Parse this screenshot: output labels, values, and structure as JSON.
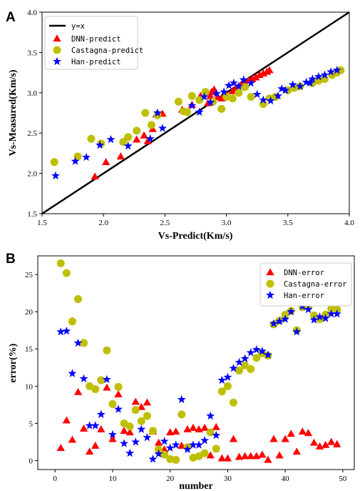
{
  "chart_data": [
    {
      "panel": "A",
      "type": "scatter",
      "xlabel": "Vs-Predict(Km/s)",
      "ylabel": "Vs-Measured(Km/s)",
      "xlim": [
        1.5,
        4.0
      ],
      "ylim": [
        1.5,
        4.0
      ],
      "xticks": [
        "1.5",
        "2.0",
        "2.5",
        "3.0",
        "3.5",
        "4.0"
      ],
      "yticks": [
        "1.5",
        "2.0",
        "2.5",
        "3.0",
        "3.5",
        "4.0"
      ],
      "legend_position": "top-left",
      "grid": false,
      "reference_line": {
        "name": "y=x",
        "from": [
          1.5,
          1.5
        ],
        "to": [
          4.0,
          4.0
        ],
        "color": "#000000"
      },
      "series": [
        {
          "name": "DNN-predict",
          "marker": "triangle",
          "color": "#ff0000",
          "points": [
            [
              1.93,
              1.96
            ],
            [
              2.02,
              2.14
            ],
            [
              2.14,
              2.21
            ],
            [
              2.27,
              2.42
            ],
            [
              2.33,
              2.47
            ],
            [
              2.36,
              2.4
            ],
            [
              2.4,
              2.55
            ],
            [
              2.43,
              2.73
            ],
            [
              2.48,
              2.74
            ],
            [
              2.64,
              2.79
            ],
            [
              2.72,
              2.85
            ],
            [
              2.79,
              2.96
            ],
            [
              2.85,
              2.87
            ],
            [
              2.88,
              3.01
            ],
            [
              2.9,
              3.04
            ],
            [
              2.93,
              2.95
            ],
            [
              2.96,
              2.93
            ],
            [
              3.0,
              2.98
            ],
            [
              3.05,
              3.02
            ],
            [
              3.08,
              3.06
            ],
            [
              3.12,
              3.1
            ],
            [
              3.15,
              3.12
            ],
            [
              3.18,
              3.15
            ],
            [
              3.21,
              3.17
            ],
            [
              3.24,
              3.19
            ],
            [
              3.27,
              3.22
            ],
            [
              3.3,
              3.24
            ],
            [
              3.33,
              3.26
            ],
            [
              3.35,
              3.28
            ],
            [
              2.87,
              2.96
            ]
          ]
        },
        {
          "name": "Castagna-predict",
          "marker": "circle",
          "color": "#bfbf00",
          "points": [
            [
              1.6,
              2.14
            ],
            [
              1.79,
              2.21
            ],
            [
              1.9,
              2.43
            ],
            [
              1.98,
              2.37
            ],
            [
              2.16,
              2.39
            ],
            [
              2.2,
              2.45
            ],
            [
              2.27,
              2.53
            ],
            [
              2.34,
              2.75
            ],
            [
              2.39,
              2.6
            ],
            [
              2.44,
              2.72
            ],
            [
              2.61,
              2.89
            ],
            [
              2.65,
              2.77
            ],
            [
              2.68,
              2.76
            ],
            [
              2.72,
              2.96
            ],
            [
              2.78,
              2.91
            ],
            [
              2.83,
              3.01
            ],
            [
              2.89,
              2.89
            ],
            [
              2.96,
              2.8
            ],
            [
              3.0,
              2.95
            ],
            [
              3.05,
              2.93
            ],
            [
              3.1,
              3.0
            ],
            [
              3.15,
              3.07
            ],
            [
              3.2,
              2.95
            ],
            [
              3.3,
              2.86
            ],
            [
              3.35,
              2.93
            ],
            [
              3.4,
              2.95
            ],
            [
              3.5,
              3.03
            ],
            [
              3.55,
              3.06
            ],
            [
              3.6,
              3.08
            ],
            [
              3.7,
              3.12
            ],
            [
              3.75,
              3.15
            ],
            [
              3.8,
              3.17
            ],
            [
              3.86,
              3.22
            ],
            [
              3.9,
              3.25
            ],
            [
              3.93,
              3.28
            ]
          ]
        },
        {
          "name": "Han-predict",
          "marker": "star",
          "color": "#0000ff",
          "points": [
            [
              1.61,
              1.97
            ],
            [
              1.77,
              2.15
            ],
            [
              1.86,
              2.2
            ],
            [
              1.97,
              2.35
            ],
            [
              2.06,
              2.42
            ],
            [
              2.2,
              2.34
            ],
            [
              2.38,
              2.43
            ],
            [
              2.44,
              2.75
            ],
            [
              2.48,
              2.56
            ],
            [
              2.72,
              2.84
            ],
            [
              2.78,
              2.76
            ],
            [
              2.82,
              2.95
            ],
            [
              2.87,
              2.88
            ],
            [
              2.92,
              2.99
            ],
            [
              2.98,
              3.01
            ],
            [
              3.02,
              3.09
            ],
            [
              3.06,
              3.12
            ],
            [
              3.1,
              3.08
            ],
            [
              3.14,
              3.16
            ],
            [
              3.2,
              3.12
            ],
            [
              3.25,
              2.98
            ],
            [
              3.3,
              2.91
            ],
            [
              3.36,
              2.9
            ],
            [
              3.42,
              2.96
            ],
            [
              3.48,
              3.03
            ],
            [
              3.54,
              3.1
            ],
            [
              3.6,
              3.08
            ],
            [
              3.65,
              3.13
            ],
            [
              3.7,
              3.17
            ],
            [
              3.75,
              3.2
            ],
            [
              3.8,
              3.22
            ],
            [
              3.85,
              3.26
            ],
            [
              3.9,
              3.28
            ],
            [
              3.68,
              3.12
            ],
            [
              3.45,
              3.05
            ]
          ]
        }
      ]
    },
    {
      "panel": "B",
      "type": "scatter",
      "xlabel": "number",
      "ylabel": "error(%)",
      "xlim": [
        -3,
        52
      ],
      "ylim": [
        -1.2,
        27.5
      ],
      "xticks": [
        "0",
        "10",
        "20",
        "30",
        "40",
        "50"
      ],
      "yticks": [
        "0",
        "5",
        "10",
        "15",
        "20",
        "25"
      ],
      "legend_position": "top-right",
      "grid": false,
      "series": [
        {
          "name": "DNN-error",
          "marker": "triangle",
          "color": "#ff0000",
          "points": [
            [
              1,
              1.7
            ],
            [
              2,
              5.4
            ],
            [
              3,
              2.8
            ],
            [
              4,
              9.2
            ],
            [
              5,
              4.3
            ],
            [
              6,
              1.2
            ],
            [
              7,
              2.0
            ],
            [
              8,
              4.2
            ],
            [
              9,
              9.8
            ],
            [
              10,
              2.9
            ],
            [
              11,
              8.9
            ],
            [
              12,
              4.0
            ],
            [
              13,
              3.8
            ],
            [
              14,
              7.9
            ],
            [
              15,
              7.2
            ],
            [
              16,
              7.8
            ],
            [
              17,
              3.9
            ],
            [
              18,
              2.4
            ],
            [
              19,
              1.5
            ],
            [
              20,
              3.8
            ],
            [
              21,
              3.9
            ],
            [
              22,
              2.0
            ],
            [
              23,
              4.2
            ],
            [
              24,
              4.4
            ],
            [
              25,
              4.2
            ],
            [
              26,
              4.4
            ],
            [
              27,
              0.7
            ],
            [
              28,
              4.5
            ],
            [
              29,
              0.3
            ],
            [
              30,
              0.3
            ],
            [
              31,
              2.9
            ],
            [
              32,
              0.5
            ],
            [
              33,
              0.6
            ],
            [
              34,
              0.6
            ],
            [
              35,
              0.6
            ],
            [
              36,
              0.8
            ],
            [
              37,
              0.1
            ],
            [
              38,
              2.9
            ],
            [
              39,
              0.7
            ],
            [
              40,
              2.9
            ],
            [
              41,
              3.6
            ],
            [
              42,
              1.2
            ],
            [
              43,
              3.9
            ],
            [
              44,
              3.7
            ],
            [
              45,
              2.4
            ],
            [
              46,
              1.9
            ],
            [
              47,
              2.1
            ],
            [
              48,
              2.5
            ],
            [
              49,
              2.2
            ]
          ]
        },
        {
          "name": "Castagna-error",
          "marker": "circle",
          "color": "#bfbf00",
          "points": [
            [
              1,
              26.5
            ],
            [
              2,
              25.2
            ],
            [
              3,
              18.7
            ],
            [
              4,
              21.7
            ],
            [
              5,
              15.8
            ],
            [
              6,
              10.0
            ],
            [
              7,
              9.6
            ],
            [
              8,
              10.8
            ],
            [
              9,
              14.8
            ],
            [
              10,
              7.6
            ],
            [
              11,
              9.9
            ],
            [
              12,
              5.0
            ],
            [
              13,
              4.6
            ],
            [
              14,
              6.8
            ],
            [
              15,
              5.3
            ],
            [
              16,
              6.0
            ],
            [
              17,
              4.0
            ],
            [
              18,
              1.5
            ],
            [
              19,
              0.8
            ],
            [
              20,
              0.2
            ],
            [
              21,
              0.1
            ],
            [
              22,
              6.2
            ],
            [
              23,
              1.8
            ],
            [
              24,
              0.4
            ],
            [
              25,
              0.6
            ],
            [
              26,
              1.0
            ],
            [
              27,
              3.8
            ],
            [
              28,
              1.6
            ],
            [
              29,
              9.3
            ],
            [
              30,
              10.0
            ],
            [
              31,
              7.8
            ],
            [
              32,
              12.1
            ],
            [
              33,
              12.8
            ],
            [
              34,
              12.3
            ],
            [
              35,
              13.8
            ],
            [
              36,
              14.4
            ],
            [
              37,
              14.1
            ],
            [
              38,
              18.3
            ],
            [
              39,
              18.8
            ],
            [
              40,
              19.6
            ],
            [
              41,
              20.1
            ],
            [
              42,
              17.5
            ],
            [
              43,
              20.6
            ],
            [
              44,
              20.6
            ],
            [
              45,
              19.5
            ],
            [
              46,
              19.0
            ],
            [
              47,
              19.6
            ],
            [
              48,
              20.4
            ],
            [
              49,
              20.3
            ]
          ]
        },
        {
          "name": "Han-error",
          "marker": "star",
          "color": "#0000ff",
          "points": [
            [
              1,
              17.3
            ],
            [
              2,
              17.4
            ],
            [
              3,
              11.7
            ],
            [
              4,
              15.8
            ],
            [
              5,
              11.0
            ],
            [
              6,
              4.7
            ],
            [
              7,
              4.7
            ],
            [
              8,
              6.2
            ],
            [
              9,
              10.9
            ],
            [
              10,
              3.5
            ],
            [
              11,
              6.9
            ],
            [
              12,
              2.3
            ],
            [
              13,
              1.0
            ],
            [
              14,
              2.5
            ],
            [
              15,
              4.2
            ],
            [
              16,
              3.1
            ],
            [
              17,
              0.2
            ],
            [
              18,
              0.9
            ],
            [
              19,
              2.6
            ],
            [
              20,
              1.7
            ],
            [
              21,
              2.1
            ],
            [
              22,
              8.2
            ],
            [
              23,
              1.5
            ],
            [
              24,
              2.1
            ],
            [
              25,
              2.1
            ],
            [
              26,
              2.7
            ],
            [
              27,
              6.0
            ],
            [
              28,
              3.4
            ],
            [
              29,
              10.8
            ],
            [
              30,
              11.2
            ],
            [
              31,
              12.4
            ],
            [
              32,
              13.2
            ],
            [
              33,
              13.7
            ],
            [
              34,
              14.5
            ],
            [
              35,
              14.9
            ],
            [
              36,
              14.7
            ],
            [
              37,
              14.2
            ],
            [
              38,
              18.4
            ],
            [
              39,
              18.7
            ],
            [
              40,
              19.0
            ],
            [
              41,
              20.0
            ],
            [
              42,
              17.3
            ],
            [
              43,
              20.7
            ],
            [
              44,
              20.3
            ],
            [
              45,
              18.9
            ],
            [
              46,
              19.3
            ],
            [
              47,
              19.1
            ],
            [
              48,
              19.7
            ],
            [
              49,
              19.7
            ]
          ]
        }
      ]
    }
  ]
}
